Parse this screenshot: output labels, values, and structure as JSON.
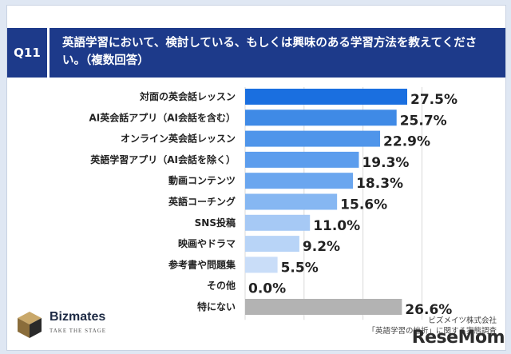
{
  "question": {
    "badge": "Q11",
    "text": "英語学習において、検討している、もしくは興味のある学習方法を教えてください。（複数回答）"
  },
  "chart_data": {
    "type": "bar",
    "orientation": "horizontal",
    "categories": [
      "対面の英会話レッスン",
      "AI英会話アプリ（AI会話を含む）",
      "オンライン英会話レッスン",
      "英語学習アプリ（AI会話を除く）",
      "動画コンテンツ",
      "英語コーチング",
      "SNS投稿",
      "映画やドラマ",
      "参考書や問題集",
      "その他",
      "特にない"
    ],
    "values": [
      27.5,
      25.7,
      22.9,
      19.3,
      18.3,
      15.6,
      11.0,
      9.2,
      5.5,
      0.0,
      26.6
    ],
    "value_labels": [
      "27.5%",
      "25.7%",
      "22.9%",
      "19.3%",
      "18.3%",
      "15.6%",
      "11.0%",
      "9.2%",
      "5.5%",
      "0.0%",
      "26.6%"
    ],
    "colors": [
      "#1a6fe0",
      "#3f8ae6",
      "#4f95ea",
      "#5c9ded",
      "#6aa6ef",
      "#86b7f2",
      "#a6c9f5",
      "#b8d4f7",
      "#c9ddf8",
      "#dbe7fa",
      "#b3b3b3"
    ],
    "xlim": [
      0,
      30
    ],
    "grid": true
  },
  "logo": {
    "name": "Bizmates",
    "tagline": "TAKE THE STAGE"
  },
  "source": {
    "line1": "ビズメイツ株式会社",
    "line2": "「英語学習の挫折」に関する実態調査"
  },
  "watermark": "ReseMom"
}
